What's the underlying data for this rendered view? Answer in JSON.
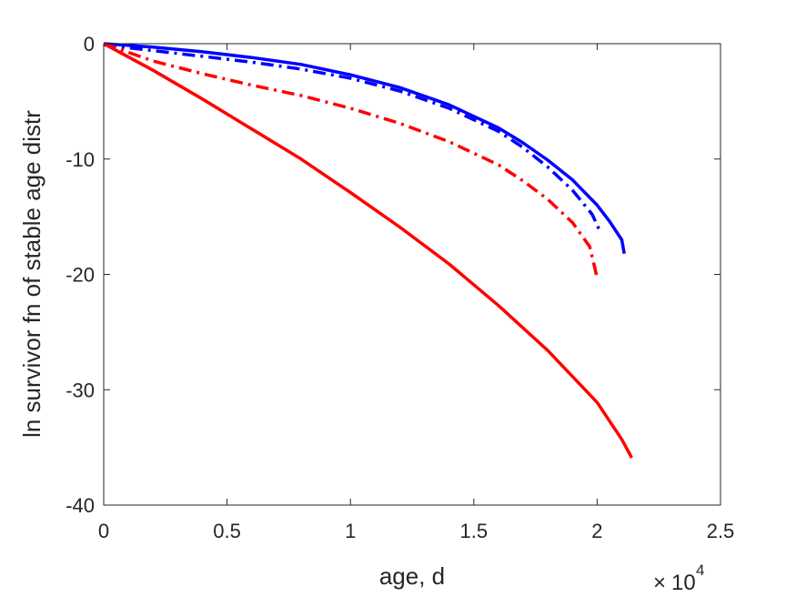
{
  "chart_data": {
    "type": "line",
    "title": "",
    "xlabel": "age, d",
    "ylabel": "ln survivor fn of stable age distr",
    "x_multiplier": {
      "base": "10",
      "exponent": "4"
    },
    "xlim": [
      0,
      25000
    ],
    "ylim": [
      -40,
      0
    ],
    "x_ticks": [
      0,
      5000,
      10000,
      15000,
      20000,
      25000
    ],
    "x_tick_labels": [
      "0",
      "0.5",
      "1",
      "1.5",
      "2",
      "2.5"
    ],
    "y_ticks": [
      0,
      -10,
      -20,
      -30,
      -40
    ],
    "y_tick_labels": [
      "0",
      "-10",
      "-20",
      "-30",
      "-40"
    ],
    "grid": false,
    "series": [
      {
        "color": "#0000ff",
        "style": "solid",
        "x": [
          0,
          2000,
          4000,
          6000,
          8000,
          10000,
          12000,
          14000,
          16000,
          17000,
          18000,
          19000,
          20000,
          20500,
          21000,
          21100
        ],
        "y": [
          0,
          -0.3,
          -0.7,
          -1.2,
          -1.8,
          -2.7,
          -3.8,
          -5.3,
          -7.3,
          -8.6,
          -10.1,
          -11.8,
          -14.0,
          -15.4,
          -17.0,
          -18.2
        ]
      },
      {
        "color": "#0000ff",
        "style": "dashdot",
        "x": [
          0,
          2000,
          4000,
          6000,
          8000,
          10000,
          12000,
          14000,
          16000,
          17000,
          18000,
          19000,
          19800,
          20100
        ],
        "y": [
          -0.1,
          -0.6,
          -1.1,
          -1.6,
          -2.2,
          -3.0,
          -4.1,
          -5.6,
          -7.6,
          -9.0,
          -10.7,
          -12.7,
          -14.8,
          -16.2
        ]
      },
      {
        "color": "#ff0000",
        "style": "dashdot",
        "x": [
          0,
          2000,
          4000,
          6000,
          8000,
          10000,
          12000,
          14000,
          16000,
          17000,
          18000,
          19000,
          19700,
          20000
        ],
        "y": [
          0,
          -1.5,
          -2.6,
          -3.6,
          -4.5,
          -5.6,
          -6.9,
          -8.5,
          -10.5,
          -11.9,
          -13.5,
          -15.5,
          -17.6,
          -20.3
        ]
      },
      {
        "color": "#ff0000",
        "style": "solid",
        "x": [
          0,
          2000,
          4000,
          6000,
          8000,
          10000,
          12000,
          14000,
          16000,
          18000,
          20000,
          21000,
          21400
        ],
        "y": [
          0,
          -2.3,
          -4.8,
          -7.4,
          -10.0,
          -12.9,
          -15.9,
          -19.1,
          -22.7,
          -26.6,
          -31.1,
          -34.3,
          -35.9
        ]
      }
    ]
  }
}
